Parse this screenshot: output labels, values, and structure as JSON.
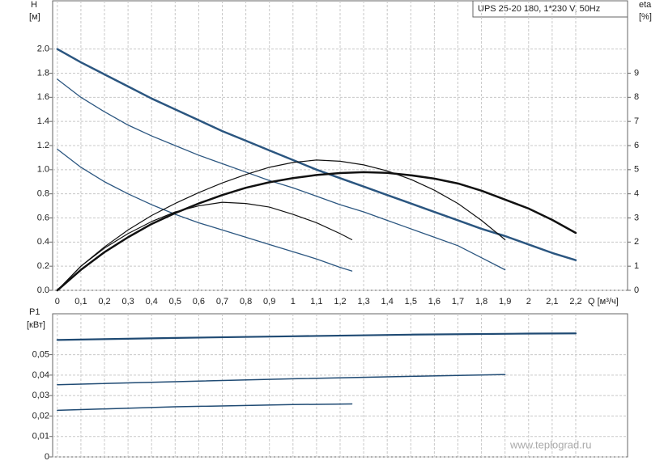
{
  "watermark": "www.teplograd.ru",
  "chart_data": [
    {
      "type": "line",
      "title": "UPS 25-20 180, 1*230 V, 50Hz",
      "ylabel": "H",
      "yunit": "[м]",
      "y2label": "eta",
      "y2unit": "[%]",
      "xlabel": "Q [м³/ч]",
      "xlim": [
        -0.02,
        2.42
      ],
      "ylim": [
        0,
        2.4
      ],
      "y2lim": [
        0,
        12
      ],
      "grid": true,
      "xticks": [
        {
          "value": 0,
          "label": "0"
        },
        {
          "value": 0.1,
          "label": "0,1"
        },
        {
          "value": 0.2,
          "label": "0,2"
        },
        {
          "value": 0.3,
          "label": "0,3"
        },
        {
          "value": 0.4,
          "label": "0,4"
        },
        {
          "value": 0.5,
          "label": "0,5"
        },
        {
          "value": 0.6,
          "label": "0,6"
        },
        {
          "value": 0.7,
          "label": "0,7"
        },
        {
          "value": 0.8,
          "label": "0,8"
        },
        {
          "value": 0.9,
          "label": "0,9"
        },
        1,
        {
          "value": 1.1,
          "label": "1,1"
        },
        {
          "value": 1.2,
          "label": "1,2"
        },
        {
          "value": 1.3,
          "label": "1,3"
        },
        {
          "value": 1.4,
          "label": "1,4"
        },
        {
          "value": 1.5,
          "label": "1,5"
        },
        {
          "value": 1.6,
          "label": "1,6"
        },
        {
          "value": 1.7,
          "label": "1,7"
        },
        {
          "value": 1.8,
          "label": "1,8"
        },
        {
          "value": 1.9,
          "label": "1,9"
        },
        2,
        {
          "value": 2.1,
          "label": "2,1"
        },
        {
          "value": 2.2,
          "label": "2,2"
        }
      ],
      "yticks": [
        {
          "value": 0,
          "label": "0.0"
        },
        0.2,
        0.4,
        0.6,
        0.8,
        {
          "value": 1,
          "label": "1.0"
        },
        1.2,
        1.4,
        1.6,
        1.8,
        {
          "value": 2,
          "label": "2.0"
        }
      ],
      "y2ticks": [
        0,
        1,
        2,
        3,
        4,
        5,
        6,
        7,
        8,
        9
      ],
      "series": [
        {
          "color": "#2b5680",
          "width": 2.5,
          "x": [
            0,
            0.1,
            0.2,
            0.3,
            0.4,
            0.5,
            0.6,
            0.7,
            0.8,
            0.9,
            1,
            1.1,
            1.2,
            1.3,
            1.4,
            1.5,
            1.6,
            1.7,
            1.8,
            1.9,
            2,
            2.1,
            2.2
          ],
          "values": [
            2.0,
            1.89,
            1.79,
            1.69,
            1.59,
            1.5,
            1.41,
            1.32,
            1.24,
            1.16,
            1.08,
            1.0,
            0.93,
            0.86,
            0.79,
            0.72,
            0.65,
            0.58,
            0.51,
            0.45,
            0.38,
            0.31,
            0.25
          ]
        },
        {
          "color": "#2b5680",
          "width": 1.3,
          "x": [
            0,
            0.1,
            0.2,
            0.3,
            0.4,
            0.5,
            0.6,
            0.7,
            0.8,
            0.9,
            1,
            1.1,
            1.2,
            1.3,
            1.4,
            1.5,
            1.6,
            1.7,
            1.8,
            1.9
          ],
          "values": [
            1.75,
            1.6,
            1.48,
            1.37,
            1.28,
            1.2,
            1.12,
            1.05,
            0.98,
            0.91,
            0.85,
            0.78,
            0.71,
            0.65,
            0.58,
            0.51,
            0.44,
            0.37,
            0.27,
            0.17
          ]
        },
        {
          "color": "#2b5680",
          "width": 1.3,
          "x": [
            0,
            0.1,
            0.2,
            0.3,
            0.4,
            0.5,
            0.6,
            0.7,
            0.8,
            0.9,
            1,
            1.1,
            1.2,
            1.25
          ],
          "values": [
            1.17,
            1.02,
            0.9,
            0.8,
            0.71,
            0.63,
            0.56,
            0.5,
            0.44,
            0.38,
            0.32,
            0.26,
            0.19,
            0.16
          ]
        },
        {
          "color": "#111111",
          "width": 2.5,
          "axis": "y2",
          "x": [
            0,
            0.1,
            0.2,
            0.3,
            0.4,
            0.5,
            0.6,
            0.7,
            0.8,
            0.9,
            1,
            1.1,
            1.2,
            1.3,
            1.4,
            1.5,
            1.6,
            1.7,
            1.8,
            1.9,
            2,
            2.1,
            2.2
          ],
          "values": [
            0,
            0.85,
            1.58,
            2.2,
            2.75,
            3.2,
            3.6,
            3.95,
            4.25,
            4.48,
            4.65,
            4.78,
            4.86,
            4.9,
            4.87,
            4.77,
            4.63,
            4.43,
            4.13,
            3.76,
            3.39,
            2.92,
            2.38
          ]
        },
        {
          "color": "#111111",
          "width": 1.2,
          "axis": "y2",
          "x": [
            0,
            0.1,
            0.2,
            0.3,
            0.4,
            0.5,
            0.6,
            0.7,
            0.8,
            0.9,
            1,
            1.1,
            1.2,
            1.3,
            1.4,
            1.5,
            1.6,
            1.7,
            1.8,
            1.9
          ],
          "values": [
            0,
            1.0,
            1.8,
            2.5,
            3.1,
            3.6,
            4.05,
            4.45,
            4.8,
            5.1,
            5.3,
            5.4,
            5.35,
            5.2,
            4.95,
            4.6,
            4.15,
            3.6,
            2.9,
            2.1
          ]
        },
        {
          "color": "#111111",
          "width": 1.2,
          "axis": "y2",
          "x": [
            0,
            0.1,
            0.2,
            0.3,
            0.4,
            0.5,
            0.6,
            0.7,
            0.8,
            0.9,
            1,
            1.1,
            1.2,
            1.25
          ],
          "values": [
            0,
            1.0,
            1.75,
            2.35,
            2.85,
            3.25,
            3.5,
            3.65,
            3.6,
            3.45,
            3.15,
            2.8,
            2.35,
            2.1
          ]
        }
      ]
    },
    {
      "type": "line",
      "ylabel": "P1",
      "yunit": "[кВт]",
      "xlim": [
        -0.02,
        2.42
      ],
      "ylim": [
        0,
        0.07
      ],
      "grid": true,
      "yticks": [
        0,
        {
          "value": 0.01,
          "label": "0,01"
        },
        {
          "value": 0.02,
          "label": "0,02"
        },
        {
          "value": 0.03,
          "label": "0,03"
        },
        {
          "value": 0.04,
          "label": "0,04"
        },
        {
          "value": 0.05,
          "label": "0,05"
        }
      ],
      "series": [
        {
          "color": "#1f4a73",
          "width": 2.2,
          "x": [
            0,
            0.5,
            1,
            1.5,
            2,
            2.2
          ],
          "values": [
            0.0572,
            0.0582,
            0.059,
            0.0598,
            0.0603,
            0.0604
          ]
        },
        {
          "color": "#1f4a73",
          "width": 1.5,
          "x": [
            0,
            0.5,
            1,
            1.5,
            1.9
          ],
          "values": [
            0.0353,
            0.0368,
            0.0382,
            0.0394,
            0.0403
          ]
        },
        {
          "color": "#1f4a73",
          "width": 1.5,
          "x": [
            0,
            0.5,
            1,
            1.25
          ],
          "values": [
            0.0228,
            0.0245,
            0.0256,
            0.0259
          ]
        }
      ]
    }
  ]
}
